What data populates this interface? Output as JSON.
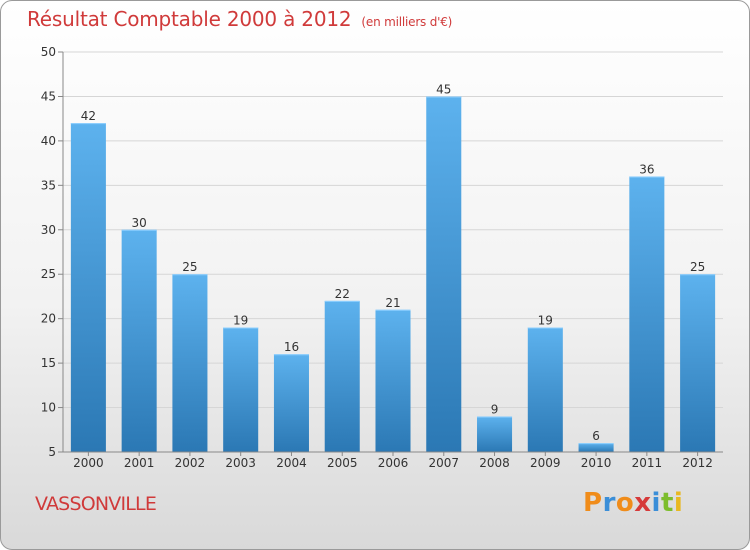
{
  "title": "Résultat Comptable 2000 à 2012",
  "subtitle": "(en milliers d'€)",
  "commune": "VASSONVILLE",
  "logo": {
    "letters": [
      "P",
      "r",
      "o",
      "x",
      "i",
      "t",
      "i"
    ],
    "colors": [
      "#f08c1a",
      "#3a8ed8",
      "#f08c1a",
      "#d63a3a",
      "#3a8ed8",
      "#7dbd2c",
      "#e8b820"
    ]
  },
  "colors": {
    "bar_top": "#5db2ee",
    "bar_bottom": "#2b78b4",
    "text_red": "#d03a3a",
    "grid": "#d6d6d6"
  },
  "chart_data": {
    "type": "bar",
    "categories": [
      "2000",
      "2001",
      "2002",
      "2003",
      "2004",
      "2005",
      "2006",
      "2007",
      "2008",
      "2009",
      "2010",
      "2011",
      "2012"
    ],
    "values": [
      42,
      30,
      25,
      19,
      16,
      22,
      21,
      45,
      9,
      19,
      6,
      36,
      25
    ],
    "ylim": [
      5,
      50
    ],
    "yticks": [
      5,
      10,
      15,
      20,
      25,
      30,
      35,
      40,
      45,
      50
    ],
    "grid": true,
    "title": "Résultat Comptable 2000 à 2012",
    "xlabel": "",
    "ylabel": ""
  }
}
